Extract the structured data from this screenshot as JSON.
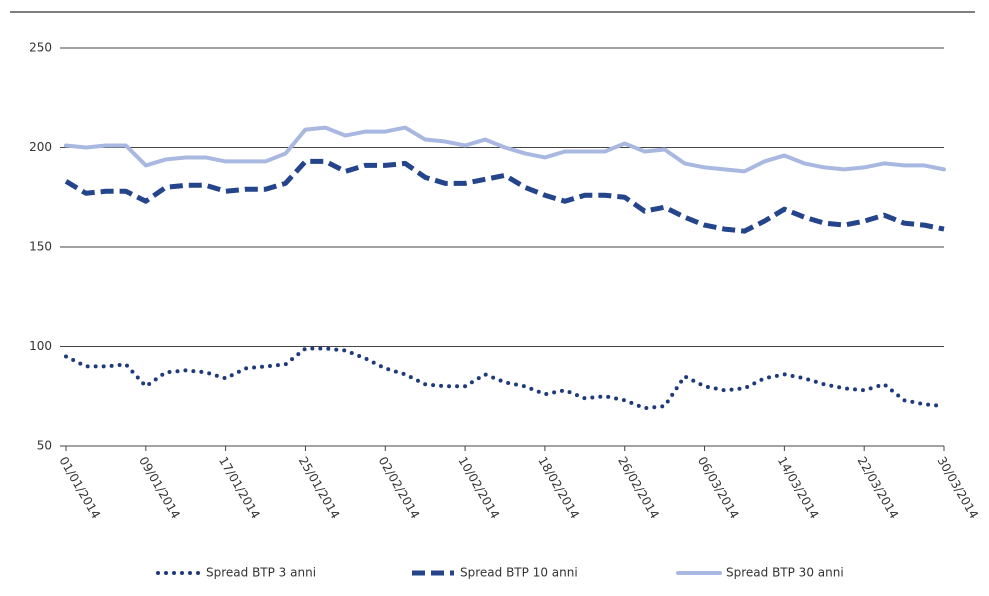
{
  "chart_data": {
    "type": "line",
    "x": [
      "01/01/2014",
      "03/01/2014",
      "05/01/2014",
      "07/01/2014",
      "09/01/2014",
      "11/01/2014",
      "13/01/2014",
      "15/01/2014",
      "17/01/2014",
      "19/01/2014",
      "21/01/2014",
      "23/01/2014",
      "25/01/2014",
      "27/01/2014",
      "29/01/2014",
      "31/01/2014",
      "02/02/2014",
      "04/02/2014",
      "06/02/2014",
      "08/02/2014",
      "10/02/2014",
      "12/02/2014",
      "14/02/2014",
      "16/02/2014",
      "18/02/2014",
      "20/02/2014",
      "22/02/2014",
      "24/02/2014",
      "26/02/2014",
      "28/02/2014",
      "02/03/2014",
      "04/03/2014",
      "06/03/2014",
      "08/03/2014",
      "10/03/2014",
      "12/03/2014",
      "14/03/2014",
      "16/03/2014",
      "18/03/2014",
      "20/03/2014",
      "22/03/2014",
      "24/03/2014",
      "26/03/2014",
      "28/03/2014",
      "30/03/2014"
    ],
    "series": [
      {
        "name": "Spread BTP 3 anni",
        "color": "#1f3a7a",
        "style": "dotted",
        "values": [
          95,
          90,
          90,
          91,
          80,
          87,
          88,
          87,
          84,
          89,
          90,
          91,
          99,
          99,
          98,
          94,
          89,
          86,
          81,
          80,
          80,
          86,
          82,
          80,
          76,
          78,
          74,
          75,
          73,
          69,
          70,
          85,
          80,
          78,
          79,
          84,
          86,
          84,
          81,
          79,
          78,
          81,
          73,
          71,
          70
        ]
      },
      {
        "name": "Spread BTP 10 anni",
        "color": "#24448c",
        "style": "dashed",
        "values": [
          183,
          177,
          178,
          178,
          173,
          180,
          181,
          181,
          178,
          179,
          179,
          182,
          193,
          193,
          188,
          191,
          191,
          192,
          185,
          182,
          182,
          184,
          186,
          180,
          176,
          173,
          176,
          176,
          175,
          168,
          170,
          165,
          161,
          159,
          158,
          163,
          169,
          165,
          162,
          161,
          163,
          166,
          162,
          161,
          159
        ]
      },
      {
        "name": "Spread BTP 30 anni",
        "color": "#a9b8e0",
        "style": "solid",
        "values": [
          201,
          200,
          201,
          201,
          191,
          194,
          195,
          195,
          193,
          193,
          193,
          197,
          209,
          210,
          206,
          208,
          208,
          210,
          204,
          203,
          201,
          204,
          200,
          197,
          195,
          198,
          198,
          198,
          202,
          198,
          199,
          192,
          190,
          189,
          188,
          193,
          196,
          192,
          190,
          189,
          190,
          192,
          191,
          191,
          189
        ]
      }
    ],
    "xticks": [
      "01/01/2014",
      "09/01/2014",
      "17/01/2014",
      "25/01/2014",
      "02/02/2014",
      "10/02/2014",
      "18/02/2014",
      "26/02/2014",
      "06/03/2014",
      "14/03/2014",
      "22/03/2014",
      "30/03/2014"
    ],
    "ylim": [
      50,
      250
    ],
    "yticks": [
      50,
      100,
      150,
      200,
      250
    ],
    "grid": true
  }
}
